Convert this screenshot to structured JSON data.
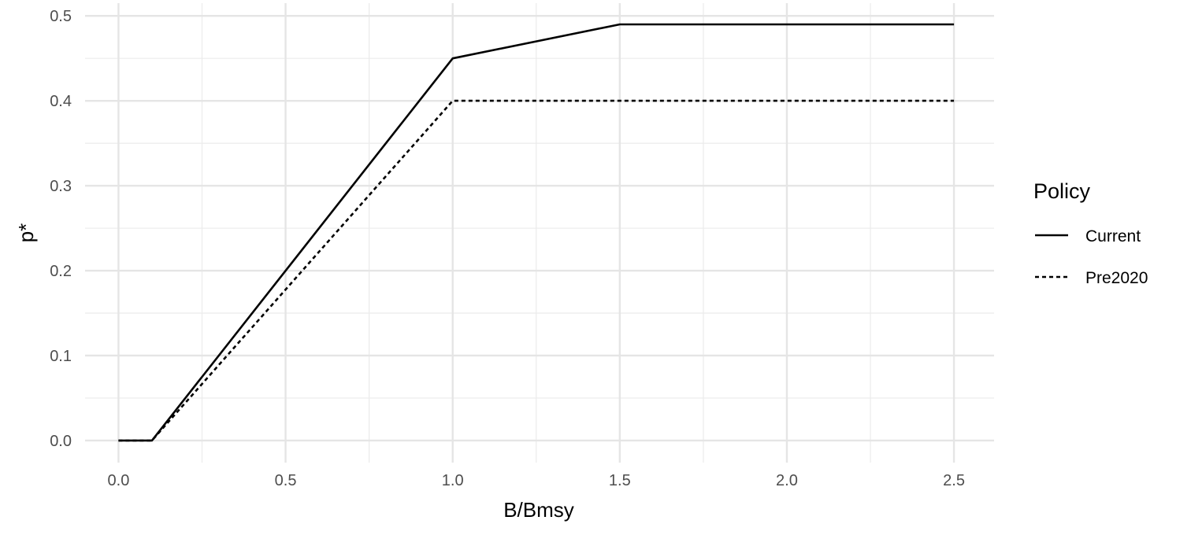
{
  "chart_data": {
    "type": "line",
    "xlabel": "B/Bmsy",
    "ylabel": "p*",
    "xlim": [
      -0.1,
      2.62
    ],
    "ylim": [
      -0.026,
      0.515
    ],
    "x_ticks": [
      "0.0",
      "0.5",
      "1.0",
      "1.5",
      "2.0",
      "2.5"
    ],
    "y_ticks": [
      "0.0",
      "0.1",
      "0.2",
      "0.3",
      "0.4",
      "0.5"
    ],
    "grid": true,
    "legend": {
      "title": "Policy",
      "placement": "right"
    },
    "series": [
      {
        "name": "Current",
        "line_style": "solid",
        "color": "#000000",
        "x": [
          0.0,
          0.1,
          1.0,
          1.5,
          2.5
        ],
        "y": [
          0.0,
          0.0,
          0.45,
          0.49,
          0.49
        ]
      },
      {
        "name": "Pre2020",
        "line_style": "dashed",
        "color": "#000000",
        "x": [
          0.0,
          0.1,
          1.0,
          2.5
        ],
        "y": [
          0.0,
          0.0,
          0.4,
          0.4
        ]
      }
    ]
  }
}
